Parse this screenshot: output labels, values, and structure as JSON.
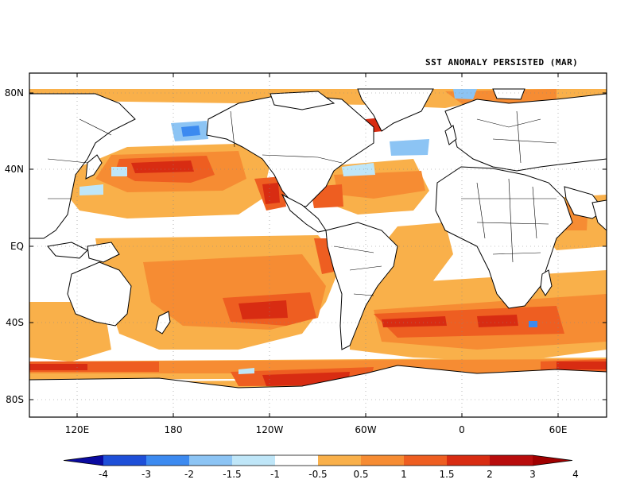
{
  "title": "SST ANOMALY PERSISTED (MAR)",
  "lat_labels": [
    "80N",
    "40N",
    "EQ",
    "40S",
    "80S"
  ],
  "lon_labels": [
    "120E",
    "180",
    "120W",
    "60W",
    "0",
    "60E"
  ],
  "colorbar": {
    "labels": [
      "-4",
      "-3",
      "-2",
      "-1.5",
      "-1",
      "-0.5",
      "0.5",
      "1",
      "1.5",
      "2",
      "3",
      "4"
    ],
    "colors": [
      "#0a0aa0",
      "#1e4fd8",
      "#3c8af0",
      "#8cc4f4",
      "#bfe6f8",
      "#ffffff",
      "#f9b04a",
      "#f68c33",
      "#ee5e21",
      "#d82c12",
      "#b80c0c",
      "#a00000"
    ]
  },
  "palette": {
    "coast": "#000000",
    "light_orange": "#f9b04a",
    "orange": "#f68c33",
    "dark_orange": "#ee5e21",
    "red": "#d82c12",
    "dark_red": "#b80c0c",
    "light_blue": "#bfe6f8",
    "blue": "#8cc4f4",
    "mid_blue": "#3c8af0"
  }
}
